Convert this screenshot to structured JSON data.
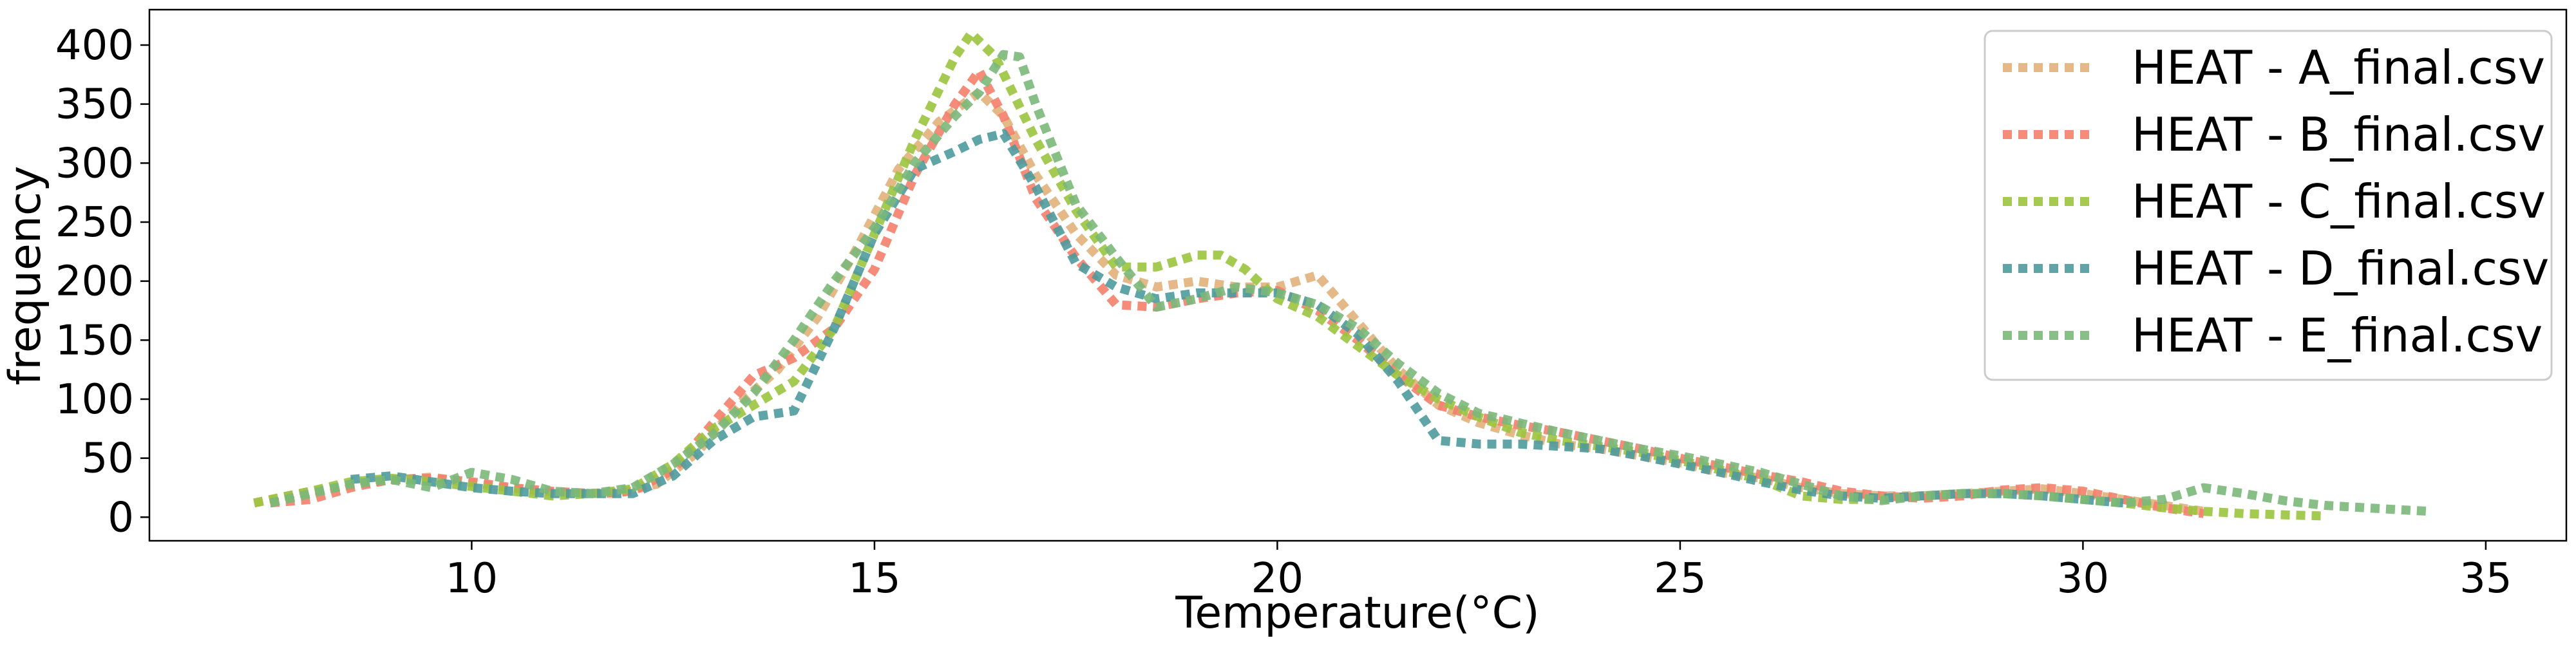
{
  "chart_data": {
    "type": "line",
    "title": "",
    "xlabel": "Temperature(°C)",
    "ylabel": "frequency",
    "xlim": [
      6,
      36
    ],
    "ylim": [
      -20,
      430
    ],
    "xticks": [
      10,
      15,
      20,
      25,
      30,
      35
    ],
    "yticks": [
      0,
      50,
      100,
      150,
      200,
      250,
      300,
      350,
      400
    ],
    "grid": false,
    "legend_position": "top-right",
    "line_style": "dotted",
    "series": [
      {
        "name": "HEAT - A_final.csv",
        "color": "#e2b07a",
        "x": [
          7.3,
          8.0,
          8.8,
          9.5,
          10.3,
          11.0,
          11.8,
          12.3,
          12.8,
          13.3,
          13.8,
          14.3,
          14.8,
          15.3,
          15.8,
          16.3,
          16.6,
          17.0,
          17.5,
          18.0,
          18.5,
          19.0,
          19.5,
          20.0,
          20.5,
          21.0,
          21.5,
          22.0,
          22.5,
          23.0,
          23.5,
          24.0,
          24.5,
          25.0,
          25.5,
          26.0,
          26.5,
          27.0,
          27.5,
          28.0,
          28.5,
          29.0,
          29.5,
          30.0,
          30.5,
          31.0,
          31.5
        ],
        "values": [
          12,
          22,
          30,
          34,
          26,
          21,
          20,
          28,
          55,
          95,
          125,
          170,
          230,
          295,
          335,
          360,
          340,
          290,
          240,
          205,
          195,
          200,
          195,
          195,
          205,
          165,
          125,
          95,
          80,
          70,
          62,
          58,
          52,
          46,
          38,
          33,
          25,
          20,
          18,
          18,
          20,
          22,
          24,
          20,
          15,
          10,
          5
        ]
      },
      {
        "name": "HEAT - B_final.csv",
        "color": "#f4806c",
        "x": [
          7.5,
          8.0,
          8.5,
          9.0,
          9.5,
          10.0,
          10.5,
          11.0,
          11.5,
          12.0,
          12.5,
          13.0,
          13.5,
          14.0,
          14.5,
          15.0,
          15.5,
          16.0,
          16.3,
          16.6,
          17.0,
          17.5,
          18.0,
          18.5,
          19.0,
          19.5,
          20.0,
          20.5,
          21.0,
          21.5,
          22.0,
          22.5,
          23.0,
          23.5,
          24.0,
          24.5,
          25.0,
          25.5,
          26.0,
          26.5,
          27.0,
          27.5,
          28.0,
          28.5,
          29.0,
          29.5,
          30.0,
          30.5,
          31.0,
          31.5
        ],
        "values": [
          12,
          15,
          25,
          32,
          33,
          30,
          25,
          22,
          20,
          22,
          40,
          80,
          120,
          135,
          160,
          210,
          290,
          350,
          378,
          340,
          270,
          220,
          180,
          178,
          185,
          190,
          192,
          175,
          150,
          120,
          95,
          85,
          78,
          72,
          65,
          58,
          50,
          43,
          36,
          30,
          22,
          18,
          16,
          18,
          23,
          25,
          22,
          15,
          8,
          3
        ]
      },
      {
        "name": "HEAT - C_final.csv",
        "color": "#9ac43f",
        "x": [
          7.3,
          8.0,
          8.5,
          9.0,
          9.5,
          10.0,
          10.5,
          11.0,
          11.5,
          12.0,
          12.5,
          13.0,
          13.5,
          14.0,
          14.5,
          15.0,
          15.5,
          16.0,
          16.2,
          16.5,
          17.0,
          17.5,
          18.0,
          18.5,
          19.0,
          19.3,
          19.6,
          20.0,
          20.5,
          21.0,
          21.5,
          22.0,
          22.5,
          23.0,
          23.5,
          24.0,
          24.5,
          25.0,
          25.5,
          26.0,
          26.5,
          27.0,
          27.5,
          28.0,
          28.5,
          29.0,
          29.5,
          30.0,
          30.5,
          31.0,
          31.5,
          32.0,
          32.5,
          33.0
        ],
        "values": [
          12,
          22,
          30,
          33,
          30,
          26,
          22,
          18,
          20,
          24,
          45,
          75,
          95,
          115,
          160,
          240,
          320,
          390,
          410,
          390,
          320,
          260,
          212,
          212,
          222,
          222,
          210,
          185,
          170,
          145,
          120,
          100,
          85,
          72,
          65,
          60,
          55,
          48,
          40,
          32,
          18,
          15,
          15,
          18,
          20,
          20,
          18,
          15,
          12,
          8,
          5,
          3,
          2,
          1
        ]
      },
      {
        "name": "HEAT - D_final.csv",
        "color": "#4e9a9c",
        "x": [
          8.5,
          9.0,
          9.5,
          10.0,
          10.5,
          11.0,
          11.5,
          12.0,
          12.5,
          13.0,
          13.5,
          14.0,
          14.5,
          15.0,
          15.5,
          16.0,
          16.3,
          16.6,
          17.0,
          17.5,
          18.0,
          18.5,
          19.0,
          19.5,
          20.0,
          20.5,
          21.0,
          21.5,
          22.0,
          22.5,
          23.0,
          23.5,
          24.0,
          24.5,
          25.0,
          25.5,
          26.0,
          26.5,
          27.0,
          27.5,
          28.0,
          28.5,
          29.0,
          29.5,
          30.0,
          30.5
        ],
        "values": [
          32,
          35,
          30,
          25,
          22,
          20,
          20,
          20,
          35,
          65,
          85,
          90,
          160,
          240,
          295,
          310,
          320,
          325,
          280,
          215,
          195,
          185,
          190,
          190,
          190,
          180,
          155,
          115,
          65,
          62,
          62,
          60,
          58,
          52,
          45,
          38,
          30,
          23,
          18,
          16,
          18,
          20,
          20,
          18,
          15,
          12
        ]
      },
      {
        "name": "HEAT - E_final.csv",
        "color": "#7ab87a",
        "x": [
          7.5,
          8.0,
          8.5,
          9.0,
          9.5,
          10.0,
          10.5,
          11.0,
          11.5,
          12.0,
          12.5,
          13.0,
          13.5,
          14.0,
          14.5,
          15.0,
          15.5,
          16.0,
          16.3,
          16.6,
          16.8,
          17.0,
          17.5,
          18.0,
          18.5,
          19.0,
          19.5,
          20.0,
          20.5,
          21.0,
          21.5,
          22.0,
          22.5,
          23.0,
          23.5,
          24.0,
          24.5,
          25.0,
          25.5,
          26.0,
          26.5,
          27.0,
          27.5,
          28.0,
          28.5,
          29.0,
          29.5,
          30.0,
          30.5,
          31.0,
          31.5,
          32.0,
          32.5,
          33.0,
          33.5,
          34.0,
          34.3
        ],
        "values": [
          12,
          20,
          28,
          32,
          25,
          38,
          32,
          22,
          20,
          25,
          45,
          70,
          105,
          150,
          200,
          245,
          300,
          340,
          360,
          392,
          390,
          350,
          265,
          220,
          178,
          185,
          195,
          190,
          180,
          160,
          130,
          105,
          88,
          80,
          72,
          65,
          58,
          52,
          45,
          38,
          28,
          18,
          14,
          18,
          20,
          20,
          18,
          15,
          12,
          15,
          25,
          20,
          14,
          10,
          8,
          6,
          5
        ]
      }
    ]
  }
}
